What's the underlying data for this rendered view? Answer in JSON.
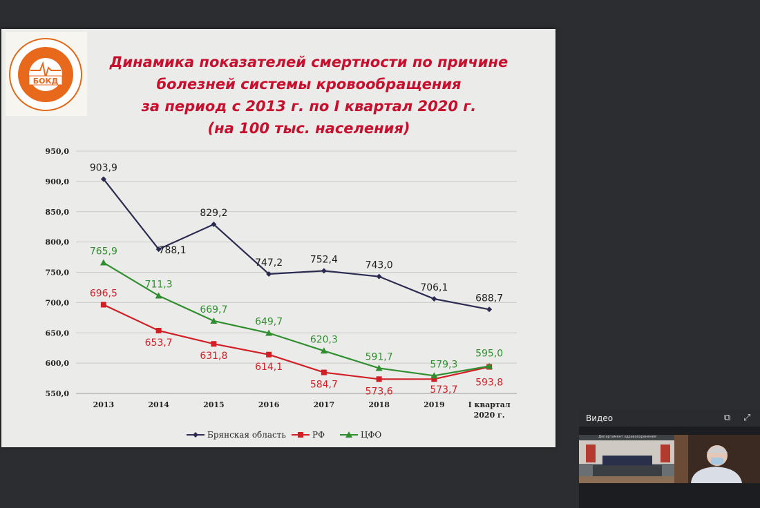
{
  "logo": {
    "text": "БОКД"
  },
  "title_lines": [
    "Динамика показателей смертности  по причине",
    "болезней системы кровообращения",
    "за период с 2013 г. по I квартал 2020 г.",
    "(на 100 тыс. населения)"
  ],
  "chart_data": {
    "type": "line",
    "title": "Динамика показателей смертности  по причине болезней системы кровообращения за период с 2013 г. по I квартал 2020 г. (на 100 тыс. населения)",
    "categories": [
      "2013",
      "2014",
      "2015",
      "2016",
      "2017",
      "2018",
      "2019",
      "I квартал 2020 г."
    ],
    "category_lines": [
      [
        "2013"
      ],
      [
        "2014"
      ],
      [
        "2015"
      ],
      [
        "2016"
      ],
      [
        "2017"
      ],
      [
        "2018"
      ],
      [
        "2019"
      ],
      [
        "I квартал",
        "2020 г."
      ]
    ],
    "ylim": [
      550,
      950
    ],
    "yticks": [
      "550,0",
      "600,0",
      "650,0",
      "700,0",
      "750,0",
      "800,0",
      "850,0",
      "900,0",
      "950,0"
    ],
    "grid": true,
    "legend_position": "bottom",
    "series": [
      {
        "name": "Брянская область",
        "color": "#2b2b52",
        "marker": "diamond",
        "values": [
          903.9,
          788.1,
          829.2,
          747.2,
          752.4,
          743.0,
          706.1,
          688.7
        ],
        "labels": [
          "903,9",
          "788,1",
          "829,2",
          "747,2",
          "752,4",
          "743,0",
          "706,1",
          "688,7"
        ]
      },
      {
        "name": "РФ",
        "color": "#d21f26",
        "marker": "square",
        "values": [
          696.5,
          653.7,
          631.8,
          614.1,
          584.7,
          573.6,
          573.7,
          593.8
        ],
        "labels": [
          "696,5",
          "653,7",
          "631,8",
          "614,1",
          "584,7",
          "573,6",
          "573,7",
          "593,8"
        ]
      },
      {
        "name": "ЦФО",
        "color": "#2f8f2f",
        "marker": "triangle",
        "values": [
          765.9,
          711.3,
          669.7,
          649.7,
          620.3,
          591.7,
          579.3,
          595.0
        ],
        "labels": [
          "765,9",
          "711,3",
          "669,7",
          "649,7",
          "620,3",
          "591,7",
          "579,3",
          "595,0"
        ]
      }
    ]
  },
  "video_panel": {
    "title": "Видео",
    "tile1_caption": "Департамент здравоохранения"
  }
}
